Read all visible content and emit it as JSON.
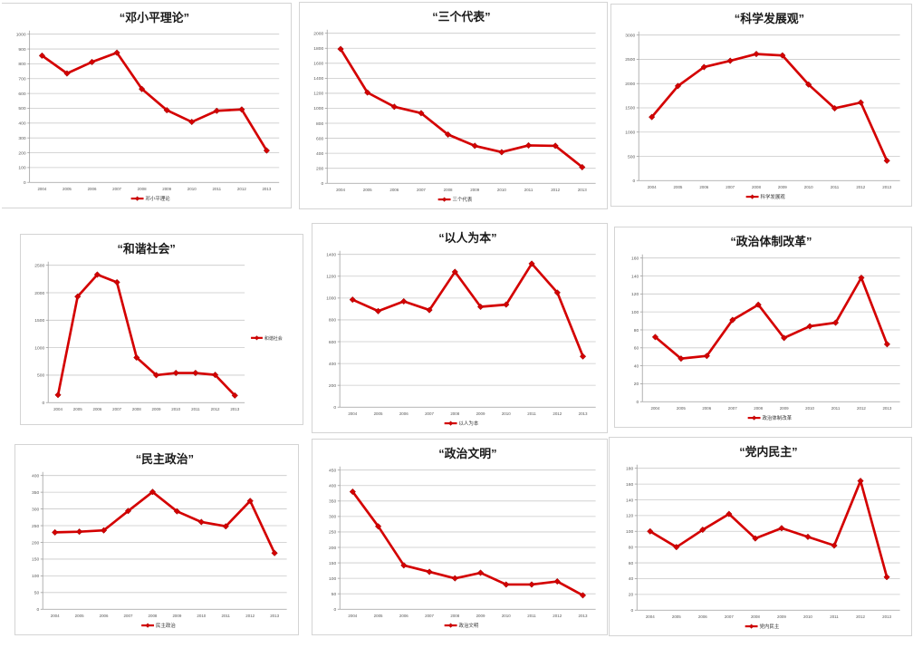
{
  "line_color": "#d40000",
  "marker_edge_color": "#8f0000",
  "grid_color": "#c9c9c9",
  "axis_color": "#9e9e9e",
  "label_color": "#595959",
  "title_color": "#1a1a1a",
  "years": [
    "2004",
    "2005",
    "2006",
    "2007",
    "2008",
    "2009",
    "2010",
    "2011",
    "2012",
    "2013"
  ],
  "chart_data": [
    {
      "type": "line",
      "title": "“邓小平理论”",
      "legend": "邓小平理论",
      "legend_position": "bottom",
      "categories": [
        "2004",
        "2005",
        "2006",
        "2007",
        "2008",
        "2009",
        "2010",
        "2011",
        "2012",
        "2013"
      ],
      "values": [
        855,
        735,
        812,
        875,
        630,
        487,
        408,
        483,
        492,
        215
      ],
      "ylim": [
        0,
        1000
      ],
      "ystep": 100,
      "grid": true
    },
    {
      "type": "line",
      "title": "“三个代表”",
      "legend": "三个代表",
      "legend_position": "bottom",
      "categories": [
        "2004",
        "2005",
        "2006",
        "2007",
        "2008",
        "2009",
        "2010",
        "2011",
        "2012",
        "2013"
      ],
      "values": [
        1790,
        1210,
        1020,
        935,
        650,
        500,
        415,
        505,
        500,
        215
      ],
      "ylim": [
        0,
        2000
      ],
      "ystep": 200,
      "grid": true
    },
    {
      "type": "line",
      "title": "“科学发展观”",
      "legend": "科学发展观",
      "legend_position": "bottom",
      "categories": [
        "2004",
        "2005",
        "2006",
        "2007",
        "2008",
        "2009",
        "2010",
        "2011",
        "2012",
        "2013"
      ],
      "values": [
        1310,
        1950,
        2340,
        2470,
        2610,
        2580,
        1980,
        1490,
        1610,
        410
      ],
      "ylim": [
        0,
        3000
      ],
      "ystep": 500,
      "grid": true
    },
    {
      "type": "line",
      "title": "“和谐社会”",
      "legend": "和谐社会",
      "legend_position": "right",
      "categories": [
        "2004",
        "2005",
        "2006",
        "2007",
        "2008",
        "2009",
        "2010",
        "2011",
        "2012",
        "2013"
      ],
      "values": [
        140,
        1930,
        2330,
        2190,
        820,
        500,
        540,
        540,
        505,
        130
      ],
      "ylim": [
        0,
        2500
      ],
      "ystep": 500,
      "grid": true
    },
    {
      "type": "line",
      "title": "“以人为本”",
      "legend": "以人为本",
      "legend_position": "bottom",
      "categories": [
        "2004",
        "2005",
        "2006",
        "2007",
        "2008",
        "2009",
        "2010",
        "2011",
        "2012",
        "2013"
      ],
      "values": [
        985,
        880,
        970,
        890,
        1240,
        920,
        940,
        1315,
        1050,
        465
      ],
      "ylim": [
        0,
        1400
      ],
      "ystep": 200,
      "grid": true
    },
    {
      "type": "line",
      "title": "“政治体制改革”",
      "legend": "政治体制改革",
      "legend_position": "bottom",
      "categories": [
        "2004",
        "2005",
        "2006",
        "2007",
        "2008",
        "2009",
        "2010",
        "2011",
        "2012",
        "2013"
      ],
      "values": [
        72,
        48,
        51,
        91,
        108,
        71,
        84,
        88,
        138,
        64
      ],
      "ylim": [
        0,
        160
      ],
      "ystep": 20,
      "grid": true
    },
    {
      "type": "line",
      "title": "“民主政治”",
      "legend": "民主政治",
      "legend_position": "bottom",
      "categories": [
        "2004",
        "2005",
        "2006",
        "2007",
        "2008",
        "2009",
        "2010",
        "2011",
        "2012",
        "2013"
      ],
      "values": [
        230,
        232,
        236,
        294,
        351,
        293,
        261,
        248,
        324,
        168
      ],
      "ylim": [
        0,
        400
      ],
      "ystep": 50,
      "grid": true
    },
    {
      "type": "line",
      "title": "“政治文明”",
      "legend": "政治文明",
      "legend_position": "bottom",
      "categories": [
        "2004",
        "2005",
        "2006",
        "2007",
        "2008",
        "2009",
        "2010",
        "2011",
        "2012",
        "2013"
      ],
      "values": [
        380,
        268,
        142,
        121,
        100,
        118,
        80,
        80,
        90,
        45
      ],
      "ylim": [
        0,
        450
      ],
      "ystep": 50,
      "grid": true
    },
    {
      "type": "line",
      "title": "“党内民主”",
      "legend": "党内民主",
      "legend_position": "bottom",
      "categories": [
        "2004",
        "2005",
        "2006",
        "2007",
        "2008",
        "2009",
        "2010",
        "2011",
        "2012",
        "2013"
      ],
      "values": [
        100,
        80,
        102,
        122,
        91,
        104,
        93,
        82,
        164,
        42
      ],
      "ylim": [
        0,
        180
      ],
      "ystep": 20,
      "grid": true
    }
  ]
}
